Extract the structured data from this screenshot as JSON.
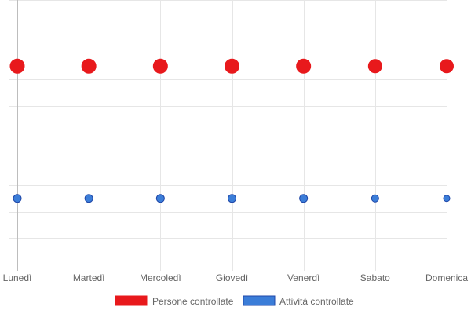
{
  "chart_data": {
    "type": "scatter",
    "categories": [
      "Lunedì",
      "Martedì",
      "Mercoledì",
      "Giovedì",
      "Venerdì",
      "Sabato",
      "Domenica"
    ],
    "series": [
      {
        "name": "Persone controllate",
        "values": [
          75,
          75,
          75,
          75,
          75,
          75,
          75
        ],
        "point_size": [
          9,
          9,
          9,
          9,
          9,
          8.5,
          8.5
        ],
        "color": "#e8191c",
        "border": "#e8191c"
      },
      {
        "name": "Attività controllate",
        "values": [
          25,
          25,
          25,
          25,
          25,
          25,
          25
        ],
        "point_size": [
          5,
          5,
          5,
          5,
          5,
          4.5,
          4
        ],
        "color": "#3b7dd8",
        "border": "#1f47a8"
      }
    ],
    "ylim": [
      0,
      100
    ],
    "y_grid_lines": 10,
    "grid": true,
    "legend_position": "bottom",
    "colors": {
      "grid": "#e6e6e6",
      "axis": "#bdbdbd",
      "text": "#666666"
    }
  }
}
